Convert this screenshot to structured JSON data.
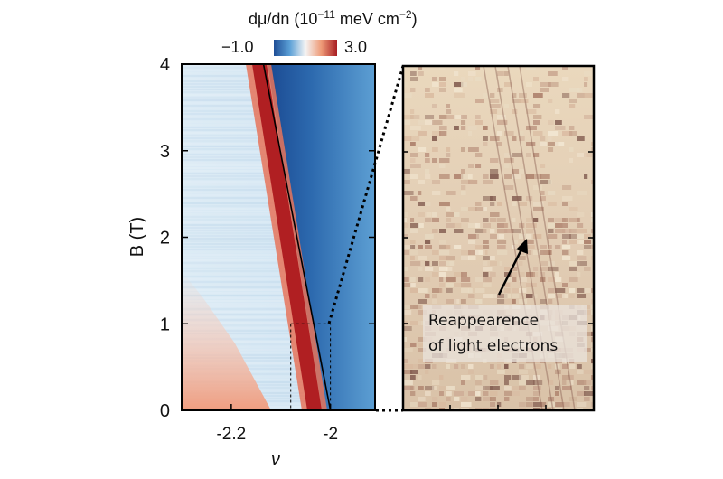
{
  "chart_data": {
    "type": "heatmap",
    "colorbar": {
      "title_main": "dμ/dn (10",
      "title_exp": "−11",
      "title_unit": " meV cm",
      "title_unit_exp": "−2",
      "title_close": ")",
      "min_label": "−1.0",
      "max_label": "3.0",
      "min": -1.0,
      "max": 3.0,
      "colors": [
        "#1f4e96",
        "#5a9fd6",
        "#f4f4f4",
        "#ee9a77",
        "#a81e23"
      ]
    },
    "xlabel": "ν",
    "ylabel": "B (T)",
    "xlim": [
      -2.3,
      -1.91
    ],
    "ylim": [
      0,
      4
    ],
    "xticks": [
      -2.2,
      -2.0
    ],
    "xtick_labels": [
      "-2.2",
      "-2"
    ],
    "yticks": [
      0,
      1,
      2,
      3,
      4
    ],
    "ytick_labels": [
      "0",
      "1",
      "2",
      "3",
      "4"
    ],
    "feature_line": {
      "x": [
        -2.0,
        -2.135
      ],
      "y": [
        0,
        4
      ]
    },
    "zoom_region": {
      "x": [
        -2.08,
        -2.0
      ],
      "y": [
        0,
        1
      ]
    },
    "inset_panel": {
      "annotation_line1": "Reappearence",
      "annotation_line2": "of light electrons"
    }
  }
}
